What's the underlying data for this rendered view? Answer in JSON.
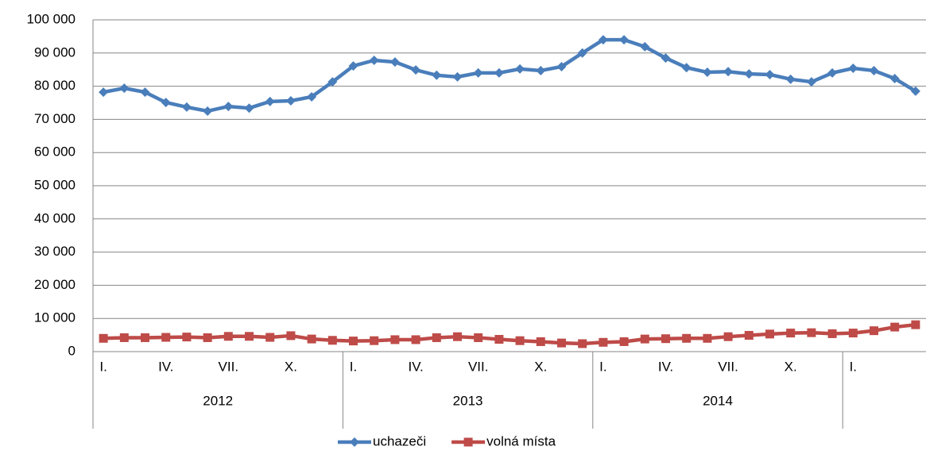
{
  "chart_data": {
    "type": "line",
    "categories": [
      "I.",
      null,
      null,
      "IV.",
      null,
      null,
      "VII.",
      null,
      null,
      "X.",
      null,
      null,
      "I.",
      null,
      null,
      "IV.",
      null,
      null,
      "VII.",
      null,
      null,
      "X.",
      null,
      null,
      "I.",
      null,
      null,
      "IV.",
      null,
      null,
      "VII.",
      null,
      null,
      "X.",
      null,
      null,
      "I.",
      null,
      null,
      null
    ],
    "years": [
      "2012",
      "2013",
      "2014"
    ],
    "series": [
      {
        "name": "uchazeči",
        "color": "#4a7ebb",
        "marker": "diamond",
        "values": [
          78200,
          79400,
          78200,
          75100,
          73700,
          72500,
          73900,
          73400,
          75400,
          75600,
          76800,
          81300,
          86100,
          87800,
          87300,
          84900,
          83300,
          82800,
          84000,
          84000,
          85200,
          84700,
          85900,
          90000,
          94000,
          94000,
          91900,
          88500,
          85600,
          84200,
          84400,
          83700,
          83500,
          82100,
          81300,
          84000,
          85400,
          84700,
          82300,
          78500
        ]
      },
      {
        "name": "volná místa",
        "color": "#be4b48",
        "marker": "square",
        "values": [
          4000,
          4200,
          4200,
          4300,
          4400,
          4200,
          4600,
          4600,
          4300,
          4800,
          3800,
          3400,
          3200,
          3300,
          3600,
          3600,
          4200,
          4500,
          4200,
          3700,
          3300,
          3000,
          2600,
          2400,
          2800,
          3000,
          3800,
          3900,
          4000,
          4000,
          4500,
          4900,
          5300,
          5600,
          5700,
          5400,
          5600,
          6300,
          7400,
          8100
        ]
      }
    ],
    "ylim": [
      0,
      100000
    ],
    "yticks": [
      0,
      {
        "value": 10000,
        "label": "10 000"
      },
      {
        "value": 20000,
        "label": "20 000"
      },
      {
        "value": 30000,
        "label": "30 000"
      },
      {
        "value": 40000,
        "label": "40 000"
      },
      {
        "value": 50000,
        "label": "50 000"
      },
      {
        "value": 60000,
        "label": "60 000"
      },
      {
        "value": 70000,
        "label": "70 000"
      },
      {
        "value": 80000,
        "label": "80 000"
      },
      {
        "value": 90000,
        "label": "90 000"
      },
      {
        "value": 100000,
        "label": "100 000"
      }
    ],
    "grid": true,
    "legend": "bottom"
  }
}
